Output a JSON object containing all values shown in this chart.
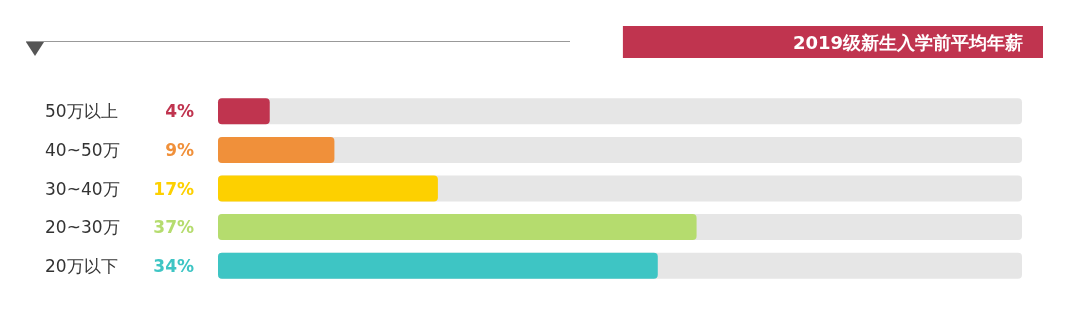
{
  "chart_data": {
    "type": "bar",
    "orientation": "horizontal",
    "title": "2019级新生入学前平均年薪",
    "categories": [
      "50万以上",
      "40~50万",
      "30~40万",
      "20~30万",
      "20万以下"
    ],
    "values": [
      4,
      9,
      17,
      37,
      34
    ],
    "colors": [
      "#c0344f",
      "#f0903a",
      "#fdd000",
      "#b5dc6e",
      "#3ec5c4"
    ],
    "value_labels": [
      "4%",
      "9%",
      "17%",
      "37%",
      "34%"
    ]
  }
}
